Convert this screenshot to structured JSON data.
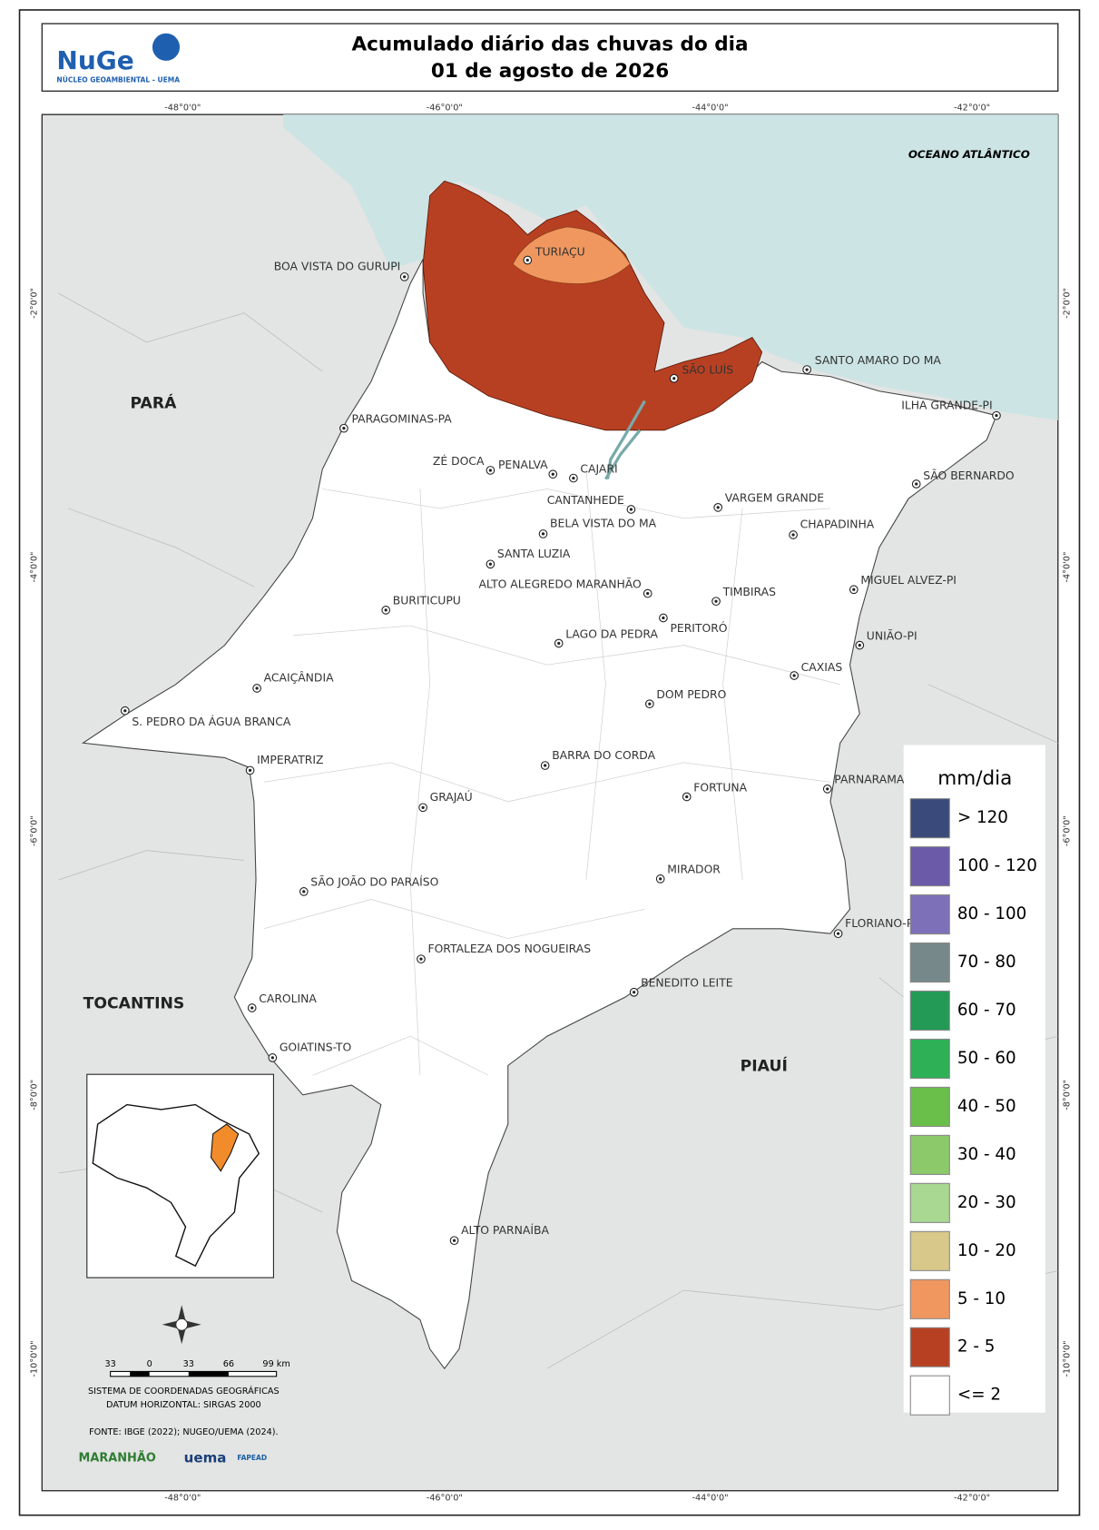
{
  "header": {
    "title_line1": "Acumulado diário das chuvas do dia",
    "title_line2": "01 de agosto de 2026",
    "logo_text": "NuGe",
    "logo_subtitle": "NÚCLEO GEOAMBIENTAL - UEMA"
  },
  "coordinates": {
    "longitudes": [
      "-48°0'0\"",
      "-46°0'0\"",
      "-44°0'0\"",
      "-42°0'0\""
    ],
    "latitudes": [
      "-2°0'0\"",
      "-4°0'0\"",
      "-6°0'0\"",
      "-8°0'0\"",
      "-10°0'0\""
    ]
  },
  "ocean_label": "OCEANO ATLÂNTICO",
  "states": [
    "PARÁ",
    "TOCANTINS",
    "PIAUÍ"
  ],
  "cities": [
    "BOA VISTA DO GURUPI",
    "TURIAÇU",
    "SÃO LUÍS",
    "SANTO AMARO DO MA",
    "ILHA GRANDE-PI",
    "PARAGOMINAS-PA",
    "ZÉ DOCA",
    "PENALVA",
    "CAJARI",
    "SÃO BERNARDO",
    "CANTANHEDE",
    "VARGEM GRANDE",
    "BELA VISTA DO MA",
    "CHAPADINHA",
    "SANTA LUZIA",
    "ALTO ALEGREDO MARANHÃO",
    "MIGUEL ALVEZ-PI",
    "TIMBIRAS",
    "BURITICUPU",
    "PERITORÓ",
    "LAGO DA PEDRA",
    "UNIÃO-PI",
    "CAXIAS",
    "ACAIÇÂNDIA",
    "DOM PEDRO",
    "S. PEDRO DA ÁGUA BRANCA",
    "IMPERATRIZ",
    "BARRA DO CORDA",
    "PARNARAMA",
    "FORTUNA",
    "GRAJAÚ",
    "MIRADOR",
    "SÃO JOÃO DO PARAÍSO",
    "FLORIANO-PI",
    "FORTALEZA DOS NOGUEIRAS",
    "BENEDITO LEITE",
    "CAROLINA",
    "GOIATINS-TO",
    "ALTO PARNAÍBA"
  ],
  "legend": {
    "title": "mm/dia",
    "items": [
      {
        "label": "> 120",
        "color": "#3a4a7a"
      },
      {
        "label": "100 - 120",
        "color": "#6b5aa8"
      },
      {
        "label": "80 - 100",
        "color": "#7e70b8"
      },
      {
        "label": "70 - 80",
        "color": "#76888a"
      },
      {
        "label": "60 - 70",
        "color": "#239b56"
      },
      {
        "label": "50 - 60",
        "color": "#2eb057"
      },
      {
        "label": "40 - 50",
        "color": "#6abf4b"
      },
      {
        "label": "30 - 40",
        "color": "#8cc96a"
      },
      {
        "label": "20 - 30",
        "color": "#a8d891"
      },
      {
        "label": "10 - 20",
        "color": "#d8c88a"
      },
      {
        "label": "5 - 10",
        "color": "#f0975f"
      },
      {
        "label": "2 - 5",
        "color": "#b84022"
      },
      {
        "label": "<= 2",
        "color": "#ffffff"
      }
    ]
  },
  "scale_bar": [
    "33",
    "0",
    "33",
    "66",
    "99 km"
  ],
  "notes": [
    "SISTEMA DE COORDENADAS GEOGRÁFICAS",
    "DATUM HORIZONTAL: SIRGAS 2000",
    "FONTE: IBGE (2022); NUGEO/UEMA (2024)."
  ],
  "logos": [
    "MARANHÃO",
    "uema",
    "FAPEAD"
  ]
}
